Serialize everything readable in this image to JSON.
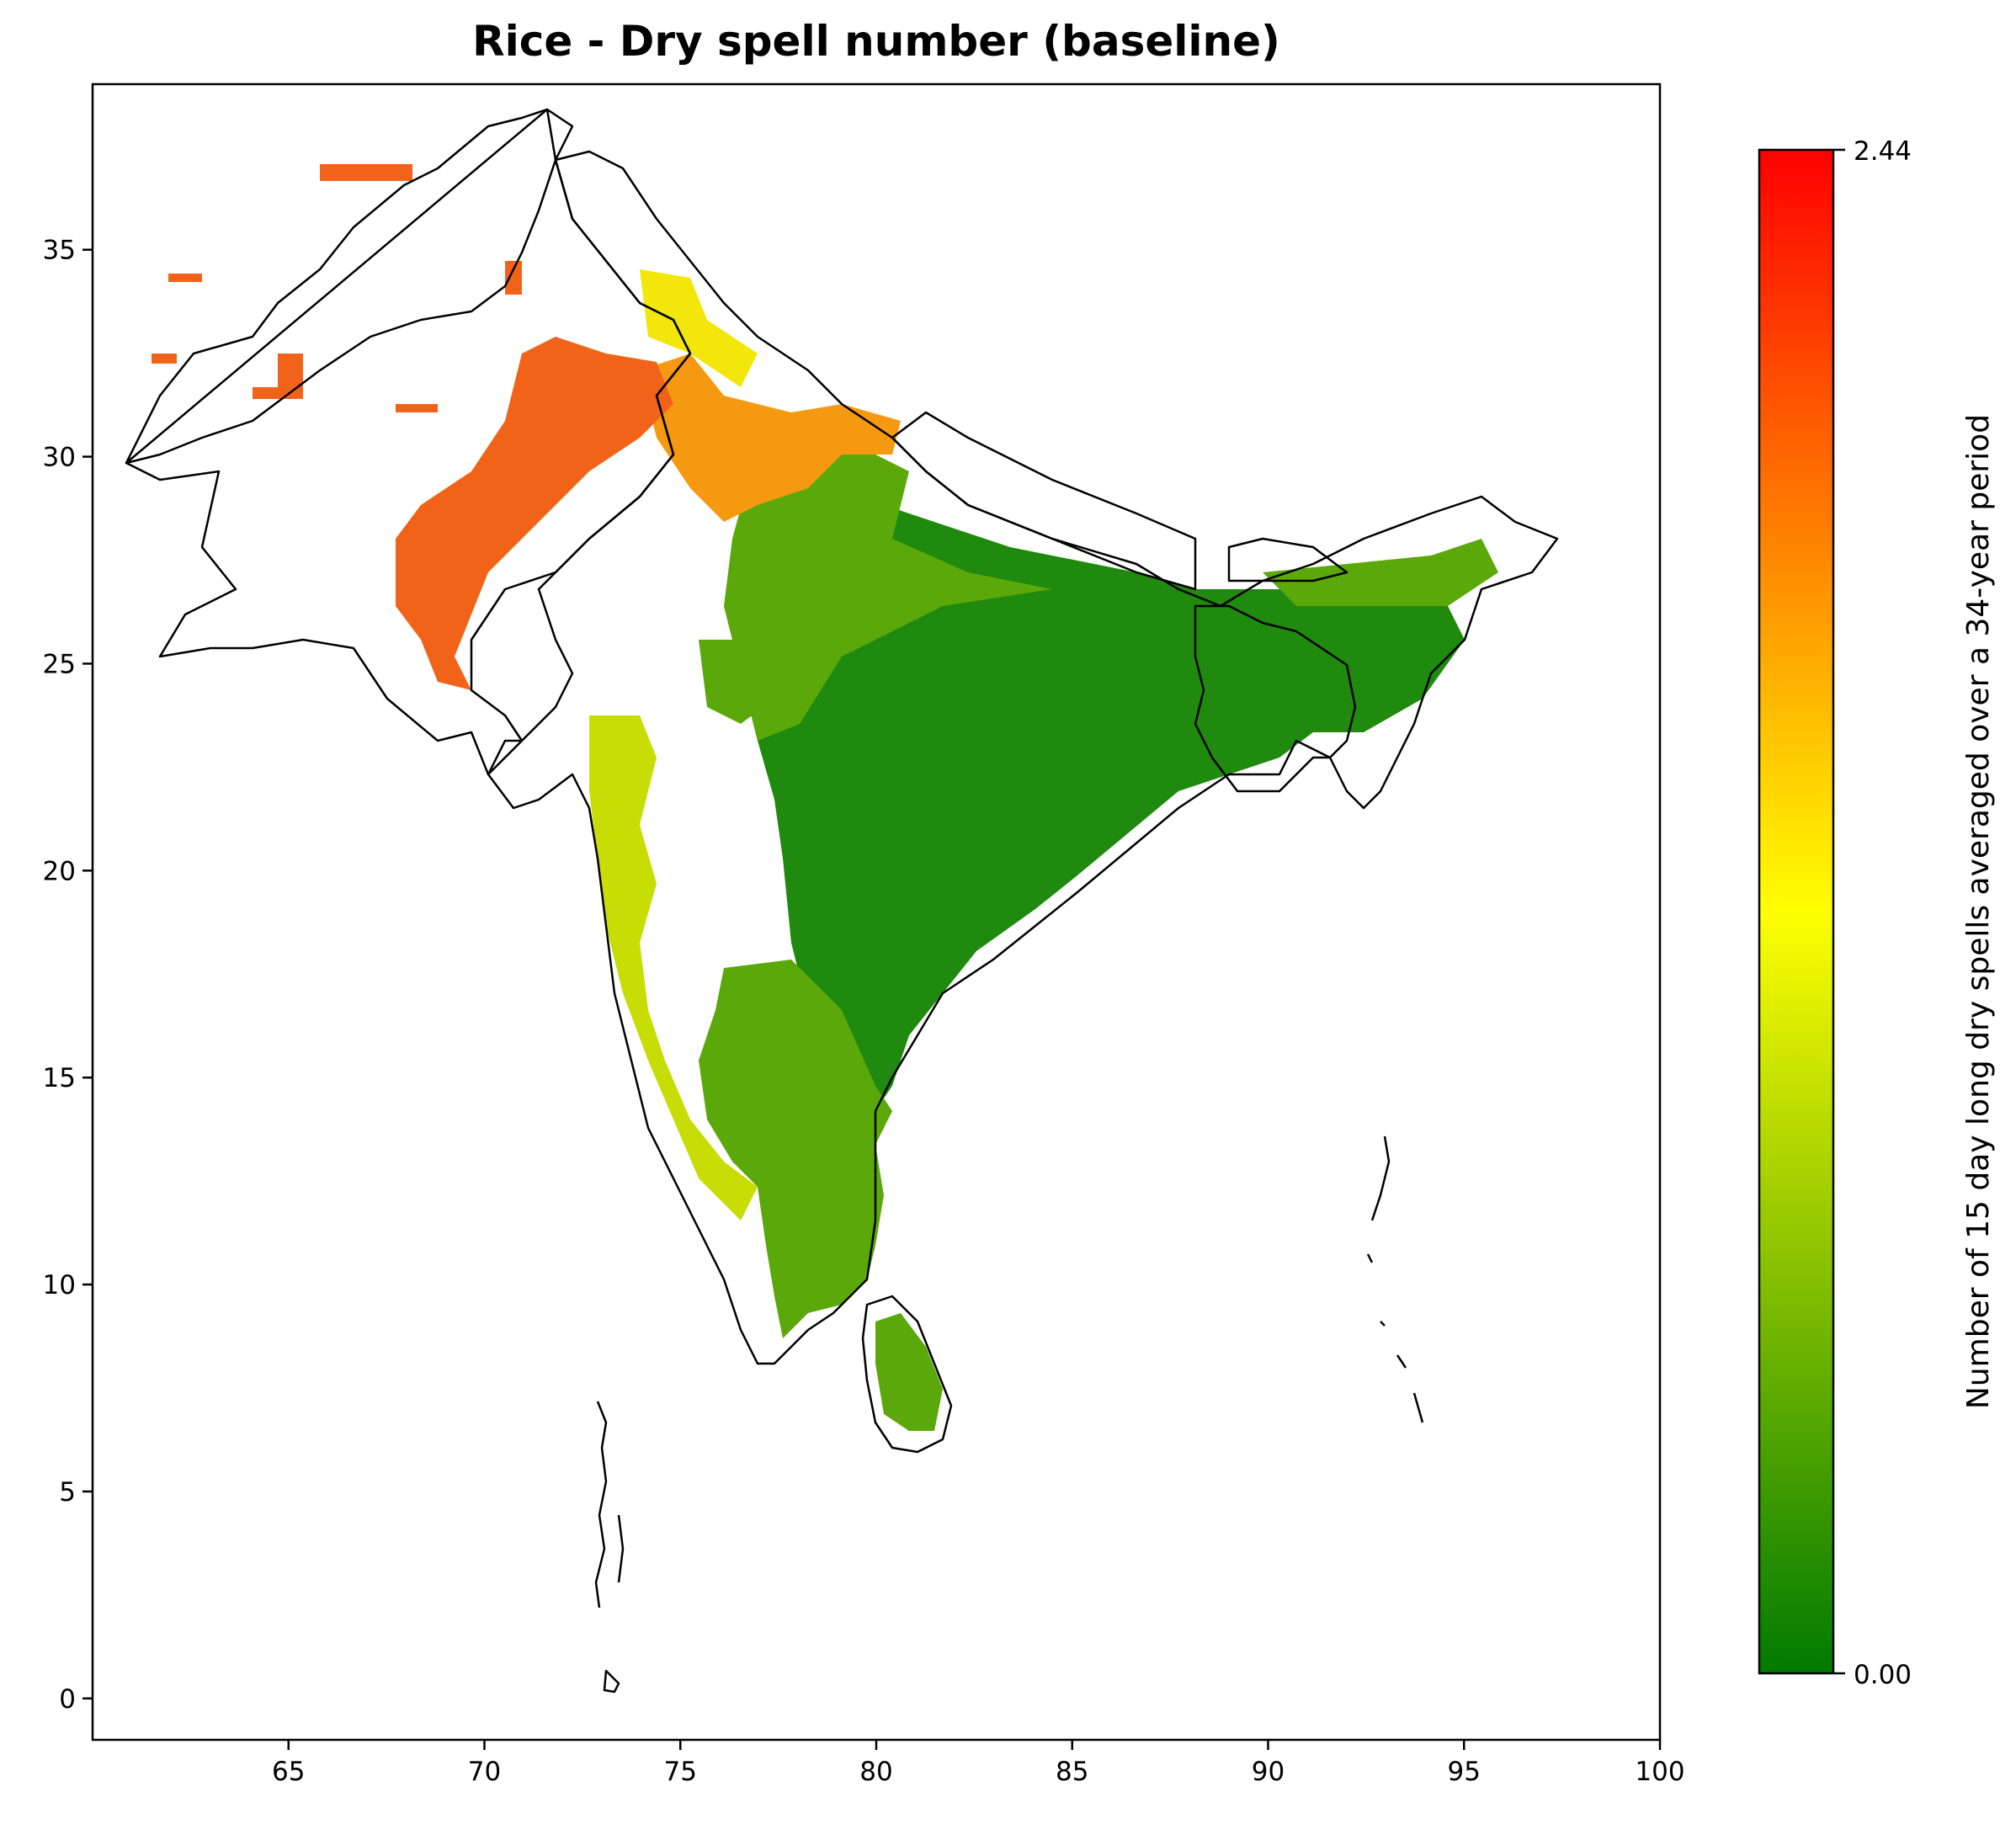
{
  "title": "Rice - Dry spell number (baseline)",
  "map": {
    "lon_range": [
      60,
      100
    ],
    "lat_range": [
      -1,
      39
    ],
    "x_ticks": [
      "65",
      "70",
      "75",
      "80",
      "85",
      "90",
      "95",
      "100"
    ],
    "y_ticks": [
      "0",
      "5",
      "10",
      "15",
      "20",
      "25",
      "30",
      "35"
    ],
    "regions": [
      "Pakistan",
      "India",
      "Nepal",
      "Bhutan",
      "Bangladesh",
      "Sri Lanka",
      "Afghanistan",
      "Maldives",
      "Andaman and Nicobar Islands"
    ]
  },
  "colorbar": {
    "label": "Number of 15 day long dry spells averaged over a 34-year period",
    "min_label": "0.00",
    "max_label": "2.44",
    "min": 0.0,
    "max": 2.44,
    "colors": [
      "#007a00",
      "#ffff00",
      "#ff0000"
    ]
  },
  "colors": {
    "low": "#1f8a0e",
    "mid_low": "#5aa80a",
    "mid": "#c8dc05",
    "yellow": "#f3e60a",
    "orange": "#f59a10",
    "high": "#f2631a",
    "border": "#000000"
  }
}
